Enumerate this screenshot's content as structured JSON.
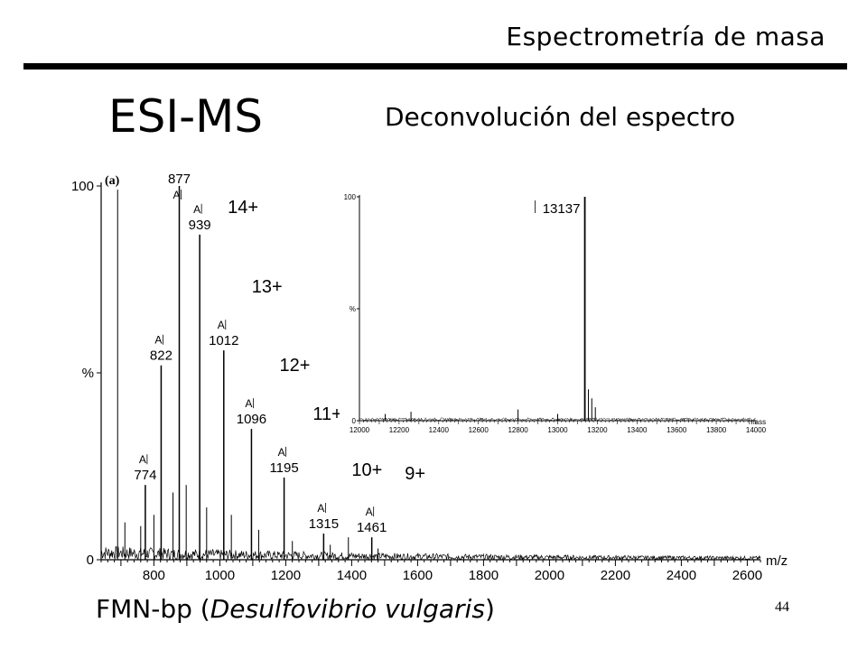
{
  "header": {
    "title": "Espectrometría de masa"
  },
  "slide": {
    "main_title": "ESI-MS",
    "subtitle": "Deconvolución del espectro",
    "footer_prefix": "FMN-bp (",
    "footer_species": "Desulfovibrio vulgaris",
    "footer_suffix": ")",
    "page_number": "44"
  },
  "colors": {
    "text": "#000000",
    "background": "#ffffff",
    "rule": "#000000"
  },
  "chart_data": [
    {
      "type": "line",
      "panel_label": "(a)",
      "xlabel": "m/z",
      "ylabel": "%",
      "xlim": [
        640,
        2640
      ],
      "ylim": [
        0,
        100
      ],
      "xticks": [
        800,
        1000,
        1200,
        1400,
        1600,
        1800,
        2000,
        2200,
        2400,
        2600
      ],
      "yticks": [
        {
          "value": 0,
          "label": "0"
        },
        {
          "value": 50,
          "label": "%"
        },
        {
          "value": 100,
          "label": "100"
        }
      ],
      "peak_marker": "A",
      "peaks": [
        {
          "x": 774,
          "y": 20,
          "label": "774",
          "charge": ""
        },
        {
          "x": 822,
          "y": 52,
          "label": "822",
          "charge": ""
        },
        {
          "x": 877,
          "y": 100,
          "label": "877",
          "charge": ""
        },
        {
          "x": 939,
          "y": 87,
          "label": "939",
          "charge": "14+"
        },
        {
          "x": 1012,
          "y": 56,
          "label": "1012",
          "charge": "13+"
        },
        {
          "x": 1096,
          "y": 35,
          "label": "1096",
          "charge": "12+"
        },
        {
          "x": 1195,
          "y": 22,
          "label": "1195",
          "charge": "11+"
        },
        {
          "x": 1315,
          "y": 7,
          "label": "1315",
          "charge": "10+"
        },
        {
          "x": 1461,
          "y": 6,
          "label": "1461",
          "charge": "9+"
        }
      ],
      "minor_peaks": [
        {
          "x": 690,
          "y": 99
        },
        {
          "x": 712,
          "y": 10
        },
        {
          "x": 760,
          "y": 9
        },
        {
          "x": 800,
          "y": 12
        },
        {
          "x": 858,
          "y": 18
        },
        {
          "x": 898,
          "y": 20
        },
        {
          "x": 960,
          "y": 14
        },
        {
          "x": 1035,
          "y": 12
        },
        {
          "x": 1118,
          "y": 8
        },
        {
          "x": 1220,
          "y": 5
        },
        {
          "x": 1335,
          "y": 4
        },
        {
          "x": 1390,
          "y": 6
        },
        {
          "x": 1480,
          "y": 3
        }
      ]
    },
    {
      "type": "line",
      "xlabel": "mass",
      "ylabel": "%",
      "xlim": [
        12000,
        14000
      ],
      "ylim": [
        0,
        100
      ],
      "xticks": [
        12000,
        12200,
        12400,
        12600,
        12800,
        13000,
        13200,
        13400,
        13600,
        13800,
        14000
      ],
      "yticks": [
        {
          "value": 0,
          "label": "0"
        },
        {
          "value": 50,
          "label": "%"
        },
        {
          "value": 100,
          "label": "100"
        }
      ],
      "peaks": [
        {
          "x": 13137,
          "y": 100,
          "label": "13137"
        }
      ],
      "minor_peaks": [
        {
          "x": 12130,
          "y": 3
        },
        {
          "x": 12260,
          "y": 4
        },
        {
          "x": 12800,
          "y": 5
        },
        {
          "x": 13000,
          "y": 3
        },
        {
          "x": 13155,
          "y": 14
        },
        {
          "x": 13172,
          "y": 10
        },
        {
          "x": 13190,
          "y": 6
        }
      ]
    }
  ]
}
